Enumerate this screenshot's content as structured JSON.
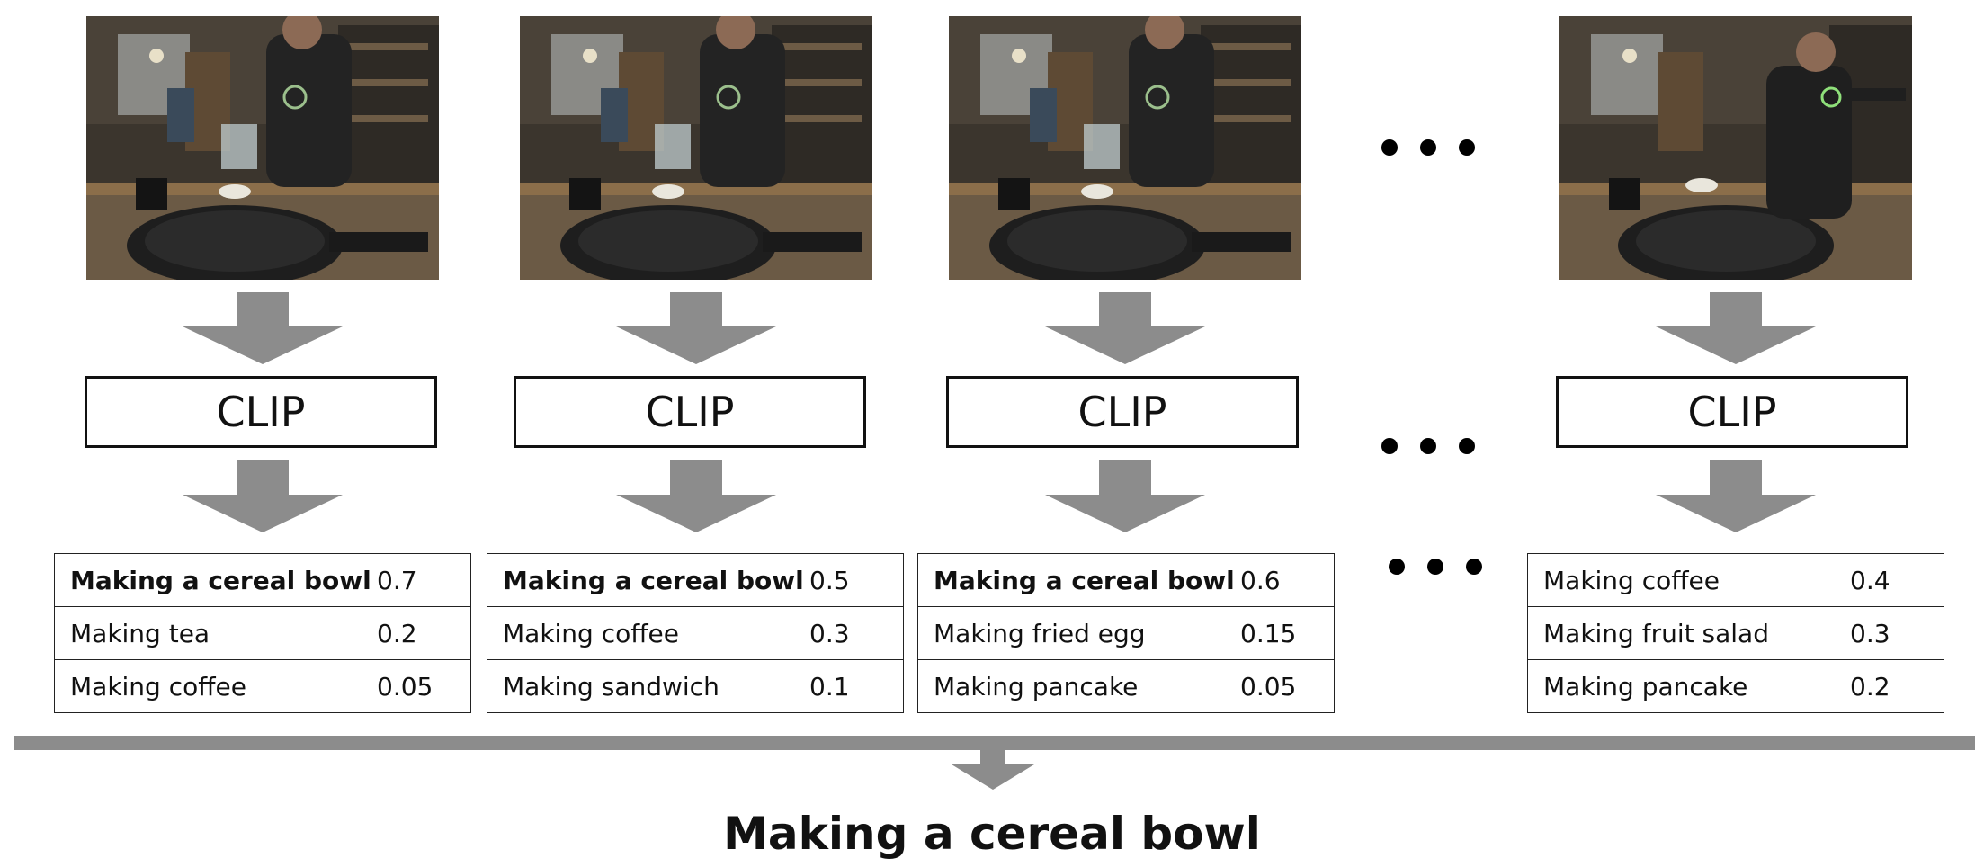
{
  "frames": [
    {
      "id": "frame-1",
      "scene": "kitchen-pouring-cereal-icon"
    },
    {
      "id": "frame-2",
      "scene": "kitchen-pouring-cereal-icon"
    },
    {
      "id": "frame-3",
      "scene": "kitchen-pouring-cereal-icon"
    },
    {
      "id": "frame-last",
      "scene": "kitchen-reaching-icon"
    }
  ],
  "model_label": "CLIP",
  "columns": [
    {
      "rows": [
        {
          "label": "Making a cereal bowl",
          "score": "0.7",
          "bold": true
        },
        {
          "label": "Making tea",
          "score": "0.2",
          "bold": false
        },
        {
          "label": "Making coffee",
          "score": "0.05",
          "bold": false
        }
      ]
    },
    {
      "rows": [
        {
          "label": "Making a cereal bowl",
          "score": "0.5",
          "bold": true
        },
        {
          "label": "Making coffee",
          "score": "0.3",
          "bold": false
        },
        {
          "label": "Making sandwich",
          "score": "0.1",
          "bold": false
        }
      ]
    },
    {
      "rows": [
        {
          "label": "Making a cereal bowl",
          "score": "0.6",
          "bold": true
        },
        {
          "label": "Making fried egg",
          "score": "0.15",
          "bold": false
        },
        {
          "label": "Making pancake",
          "score": "0.05",
          "bold": false
        }
      ]
    },
    {
      "rows": [
        {
          "label": "Making coffee",
          "score": "0.4",
          "bold": false
        },
        {
          "label": "Making fruit salad",
          "score": "0.3",
          "bold": false
        },
        {
          "label": "Making pancake",
          "score": "0.2",
          "bold": false
        }
      ]
    }
  ],
  "final_prediction": "Making a cereal bowl",
  "colors": {
    "arrow": "#8c8c8c",
    "border": "#111111",
    "background": "#ffffff"
  },
  "ellipsis_icon": "ellipsis-icon"
}
